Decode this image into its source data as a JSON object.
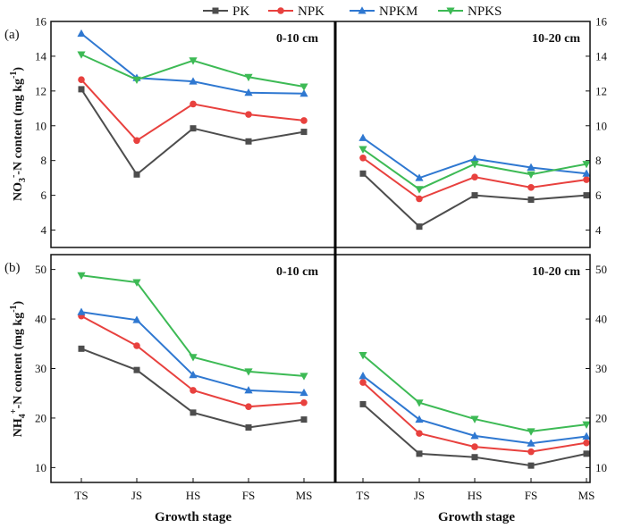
{
  "chart_data": {
    "type": "line",
    "x_axis_title": "Growth stage",
    "categories": [
      "TS",
      "JS",
      "HS",
      "FS",
      "MS"
    ],
    "legend": [
      {
        "name": "PK",
        "color": "#4d4d4d",
        "marker": "square"
      },
      {
        "name": "NPK",
        "color": "#e8413e",
        "marker": "circle"
      },
      {
        "name": "NPKM",
        "color": "#2f78d1",
        "marker": "triangle-up"
      },
      {
        "name": "NPKS",
        "color": "#3dba55",
        "marker": "triangle-down"
      }
    ],
    "rows": [
      {
        "label": "(a)",
        "ylabel": {
          "prefix": "NO",
          "sub": "3",
          "sup": "-",
          "middle": "-N content (mg kg",
          "unit_sup": "-1",
          "suffix": ")"
        },
        "ylim": [
          3,
          16
        ],
        "yticks": [
          "4",
          "6",
          "8",
          "10",
          "12",
          "14",
          "16"
        ],
        "panels": [
          {
            "depth": "0-10 cm",
            "series": [
              {
                "name": "PK",
                "values": [
                  12.1,
                  7.2,
                  9.85,
                  9.1,
                  9.65
                ]
              },
              {
                "name": "NPK",
                "values": [
                  12.65,
                  9.15,
                  11.25,
                  10.65,
                  10.3
                ]
              },
              {
                "name": "NPKM",
                "values": [
                  15.3,
                  12.75,
                  12.55,
                  11.9,
                  11.85
                ]
              },
              {
                "name": "NPKS",
                "values": [
                  14.1,
                  12.65,
                  13.75,
                  12.8,
                  12.25
                ]
              }
            ]
          },
          {
            "depth": "10-20 cm",
            "series": [
              {
                "name": "PK",
                "values": [
                  7.25,
                  4.2,
                  6.0,
                  5.75,
                  6.0
                ]
              },
              {
                "name": "NPK",
                "values": [
                  8.15,
                  5.8,
                  7.05,
                  6.45,
                  6.9
                ]
              },
              {
                "name": "NPKM",
                "values": [
                  9.3,
                  7.0,
                  8.1,
                  7.6,
                  7.25
                ]
              },
              {
                "name": "NPKS",
                "values": [
                  8.65,
                  6.35,
                  7.8,
                  7.2,
                  7.8
                ]
              }
            ]
          }
        ]
      },
      {
        "label": "(b)",
        "ylabel": {
          "prefix": "NH",
          "sub": "4",
          "sup": "+",
          "middle": "-N content (mg kg",
          "unit_sup": "-1",
          "suffix": ")"
        },
        "ylim": [
          7,
          53
        ],
        "yticks": [
          "10",
          "20",
          "30",
          "40",
          "50"
        ],
        "panels": [
          {
            "depth": "0-10 cm",
            "series": [
              {
                "name": "PK",
                "values": [
                  34.0,
                  29.7,
                  21.1,
                  18.1,
                  19.7
                ]
              },
              {
                "name": "NPK",
                "values": [
                  40.6,
                  34.6,
                  25.6,
                  22.3,
                  23.1
                ]
              },
              {
                "name": "NPKM",
                "values": [
                  41.4,
                  39.8,
                  28.7,
                  25.6,
                  25.1
                ]
              },
              {
                "name": "NPKS",
                "values": [
                  48.8,
                  47.4,
                  32.3,
                  29.4,
                  28.5
                ]
              }
            ]
          },
          {
            "depth": "10-20 cm",
            "series": [
              {
                "name": "PK",
                "values": [
                  22.8,
                  12.8,
                  12.1,
                  10.4,
                  12.8
                ]
              },
              {
                "name": "NPK",
                "values": [
                  27.2,
                  16.9,
                  14.2,
                  13.2,
                  15.0
                ]
              },
              {
                "name": "NPKM",
                "values": [
                  28.5,
                  19.7,
                  16.4,
                  14.9,
                  16.3
                ]
              },
              {
                "name": "NPKS",
                "values": [
                  32.7,
                  23.1,
                  19.8,
                  17.3,
                  18.7
                ]
              }
            ]
          }
        ]
      }
    ]
  }
}
